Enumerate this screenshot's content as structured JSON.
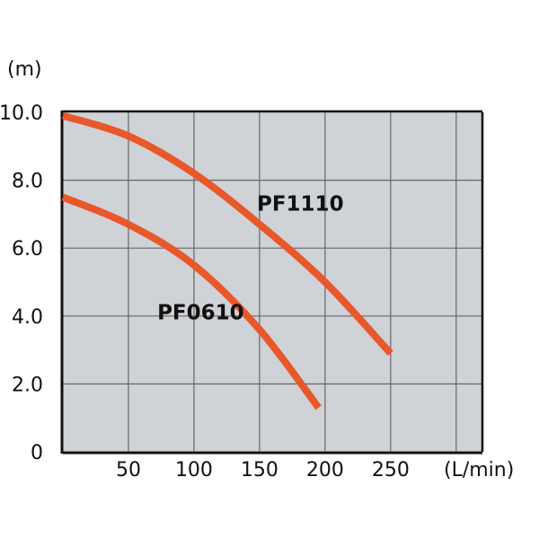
{
  "chart_data": {
    "type": "line",
    "ylabel": "(m)",
    "xlabel": "(L/min)",
    "xlim": [
      0,
      320
    ],
    "ylim": [
      0,
      10
    ],
    "grid": true,
    "x_ticks": [
      {
        "value": 50,
        "label": "50"
      },
      {
        "value": 100,
        "label": "100"
      },
      {
        "value": 150,
        "label": "150"
      },
      {
        "value": 200,
        "label": "200"
      },
      {
        "value": 250,
        "label": "250"
      }
    ],
    "y_ticks": [
      {
        "value": 0,
        "label": "0"
      },
      {
        "value": 2,
        "label": "2.0"
      },
      {
        "value": 4,
        "label": "4.0"
      },
      {
        "value": 6,
        "label": "6.0"
      },
      {
        "value": 8,
        "label": "8.0"
      },
      {
        "value": 10,
        "label": "10.0"
      }
    ],
    "series": [
      {
        "name": "PF1110",
        "color": "#e8582a",
        "x": [
          0,
          50,
          100,
          150,
          200,
          250
        ],
        "y": [
          9.9,
          9.3,
          8.2,
          6.7,
          5.0,
          2.9
        ],
        "label_at": [
          148,
          7.1
        ]
      },
      {
        "name": "PF0610",
        "color": "#e8582a",
        "x": [
          0,
          50,
          100,
          150,
          195
        ],
        "y": [
          7.5,
          6.7,
          5.5,
          3.6,
          1.3
        ],
        "label_at": [
          72,
          3.9
        ]
      }
    ],
    "colors": {
      "plot_background": "#cfd2d6",
      "grid": "#666666",
      "axis": "#111111"
    }
  }
}
